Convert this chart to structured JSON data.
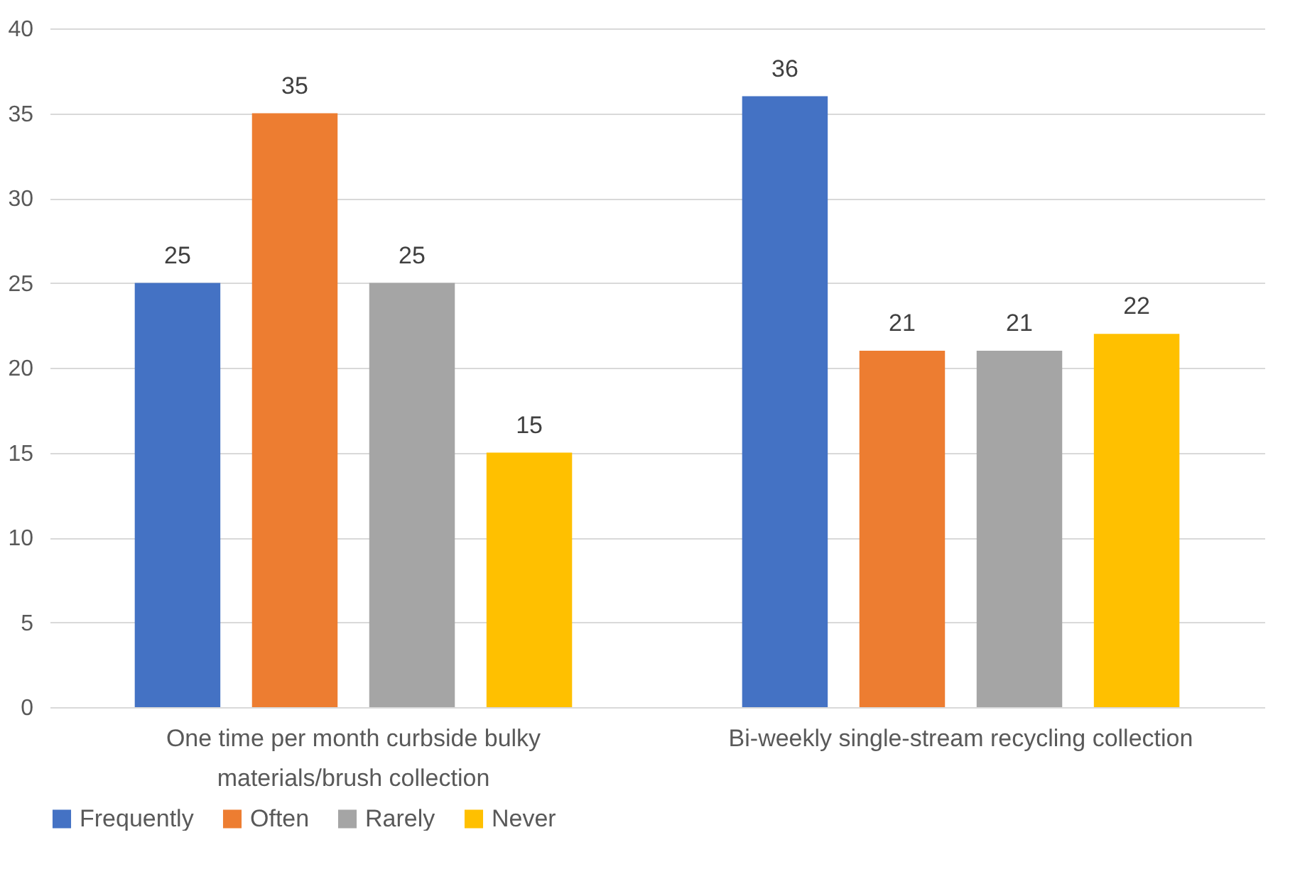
{
  "chart_data": {
    "type": "bar",
    "categories": [
      "One time per month curbside bulky materials/brush collection",
      "Bi-weekly single-stream recycling collection"
    ],
    "series": [
      {
        "name": "Frequently",
        "color": "#4472c4",
        "values": [
          25,
          36
        ]
      },
      {
        "name": "Often",
        "color": "#ed7d31",
        "values": [
          35,
          21
        ]
      },
      {
        "name": "Rarely",
        "color": "#a5a5a5",
        "values": [
          25,
          21
        ]
      },
      {
        "name": "Never",
        "color": "#ffc000",
        "values": [
          15,
          22
        ]
      }
    ],
    "ylim": [
      0,
      40
    ],
    "yticks": [
      0,
      5,
      10,
      15,
      20,
      25,
      30,
      35,
      40
    ],
    "grid": "y",
    "legend": "bottom",
    "data_labels": true
  }
}
